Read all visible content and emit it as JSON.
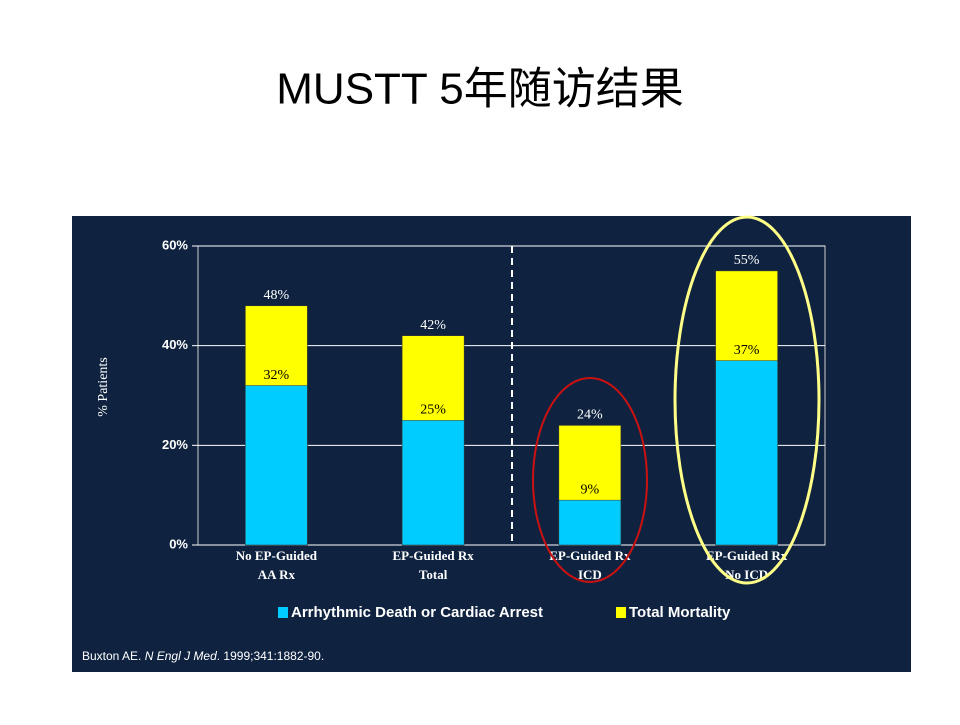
{
  "slide_title": "MUSTT 5年随访结果",
  "chart_data": {
    "type": "bar",
    "categories": [
      [
        "No EP-Guided",
        "AA Rx"
      ],
      [
        "EP-Guided Rx",
        "Total"
      ],
      [
        "EP-Guided Rx",
        "ICD"
      ],
      [
        "EP-Guided Rx",
        "No ICD"
      ]
    ],
    "series": [
      {
        "name": "Total Mortality",
        "color": "#ffff00",
        "values": [
          48,
          42,
          24,
          55
        ],
        "value_labels": [
          "48%",
          "42%",
          "24%",
          "55%"
        ]
      },
      {
        "name": "Arrhythmic Death or Cardiac Arrest",
        "color": "#00ccff",
        "values": [
          32,
          25,
          9,
          37
        ],
        "value_labels": [
          "32%",
          "25%",
          "9%",
          "37%"
        ]
      }
    ],
    "ylabel": "% Patients",
    "ylim": [
      0,
      60
    ],
    "yticks": [
      {
        "value": 0,
        "label": "0%"
      },
      {
        "value": 20,
        "label": "20%"
      },
      {
        "value": 40,
        "label": "40%"
      },
      {
        "value": 60,
        "label": "60%"
      }
    ],
    "grid": true
  },
  "citation": {
    "before": "Buxton AE. ",
    "journal": "N Engl J Med",
    "after": ". 1999;341:1882-90."
  }
}
